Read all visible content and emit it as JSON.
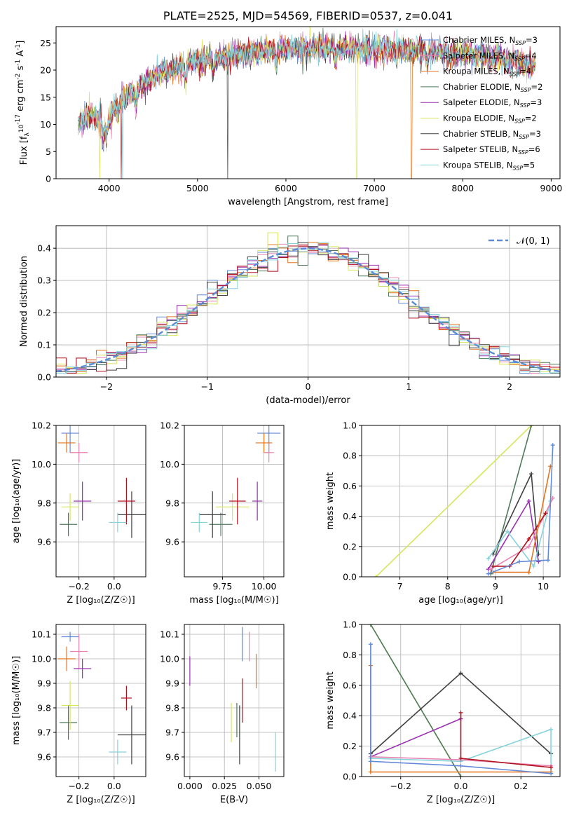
{
  "colors": [
    "#6389d9",
    "#e883b1",
    "#e4741d",
    "#4e7a5b",
    "#9931b0",
    "#d7e55c",
    "#404040",
    "#b2121e",
    "#87d4da"
  ],
  "chart_data": [
    {
      "id": "spectrum",
      "type": "line",
      "title": "PLATE=2525, MJD=54569, FIBERID=0537, z=0.041",
      "xlabel": "wavelength [Angstrom, rest frame]",
      "ylabel_parts": [
        "Flux [f",
        "λ",
        "10",
        "-17",
        " erg cm",
        "-2",
        " s",
        "-1",
        " A",
        "-1",
        "]"
      ],
      "xlim": [
        3400,
        9100
      ],
      "ylim": [
        0,
        28
      ],
      "xticks": [
        4000,
        5000,
        6000,
        7000,
        8000,
        9000
      ],
      "yticks": [
        0,
        5,
        10,
        15,
        20,
        25
      ],
      "x_range_data": [
        3650,
        8820
      ],
      "continuum": [
        [
          3650,
          10
        ],
        [
          3750,
          12
        ],
        [
          3850,
          11
        ],
        [
          4000,
          11
        ],
        [
          4100,
          14
        ],
        [
          4300,
          16.5
        ],
        [
          4600,
          19.5
        ],
        [
          5000,
          21.5
        ],
        [
          5500,
          23
        ],
        [
          6000,
          24
        ],
        [
          6500,
          24
        ],
        [
          7000,
          24
        ],
        [
          7500,
          23.5
        ],
        [
          8000,
          23
        ],
        [
          8500,
          22
        ],
        [
          8800,
          21
        ]
      ],
      "legend": [
        {
          "name_parts": [
            "Chabrier MILES, N",
            "SSP",
            "=3"
          ],
          "color": "#6389d9"
        },
        {
          "name_parts": [
            "Salpeter MILES, N",
            "SSP",
            "=4"
          ],
          "color": "#e883b1"
        },
        {
          "name_parts": [
            "Kroupa MILES, N",
            "SSP",
            "=4"
          ],
          "color": "#e4741d"
        },
        {
          "name_parts": [
            "Chabrier ELODIE, N",
            "SSP",
            "=2"
          ],
          "color": "#4e7a5b"
        },
        {
          "name_parts": [
            "Salpeter ELODIE, N",
            "SSP",
            "=3"
          ],
          "color": "#9931b0"
        },
        {
          "name_parts": [
            "Kroupa ELODIE, N",
            "SSP",
            "=2"
          ],
          "color": "#d7e55c"
        },
        {
          "name_parts": [
            "Chabrier STELIB, N",
            "SSP",
            "=3"
          ],
          "color": "#404040"
        },
        {
          "name_parts": [
            "Salpeter STELIB, N",
            "SSP",
            "=6"
          ],
          "color": "#b2121e"
        },
        {
          "name_parts": [
            "Kroupa STELIB, N",
            "SSP",
            "=5"
          ],
          "color": "#87d4da"
        }
      ]
    },
    {
      "id": "residuals",
      "type": "step",
      "xlabel": "(data-model)/error",
      "ylabel": "Normed distribution",
      "xlim": [
        -2.5,
        2.5
      ],
      "ylim": [
        0,
        0.47
      ],
      "xticks": [
        -2,
        -1,
        0,
        1,
        2
      ],
      "yticks": [
        0.0,
        0.1,
        0.2,
        0.3,
        0.4
      ],
      "legend_label": "𝒩(0, 1)",
      "legend_color": "#5b8ad6",
      "bin_width": 0.1
    },
    {
      "id": "age_vs_Z",
      "type": "errorbar",
      "xlabel": "Z [log₁₀(Z/Z☉)]",
      "ylabel": "age  [log₁₀(age/yr)]",
      "xlim": [
        -0.33,
        0.18
      ],
      "ylim": [
        9.42,
        10.2
      ],
      "xticks": [
        -0.2,
        0.0
      ],
      "yticks": [
        9.6,
        9.8,
        10.0,
        10.2
      ],
      "points": [
        {
          "x": -0.25,
          "xerr": 0.05,
          "y": 10.16,
          "yerr": 0.1,
          "color": "#6389d9"
        },
        {
          "x": -0.2,
          "xerr": 0.05,
          "y": 10.06,
          "yerr": 0.05,
          "color": "#e883b1"
        },
        {
          "x": -0.27,
          "xerr": 0.05,
          "y": 10.11,
          "yerr": 0.05,
          "color": "#e4741d"
        },
        {
          "x": -0.26,
          "xerr": 0.05,
          "y": 9.69,
          "yerr": 0.06,
          "color": "#4e7a5b"
        },
        {
          "x": -0.18,
          "xerr": 0.05,
          "y": 9.81,
          "yerr": 0.1,
          "color": "#9931b0"
        },
        {
          "x": -0.25,
          "xerr": 0.05,
          "y": 9.78,
          "yerr": 0.07,
          "color": "#d7e55c"
        },
        {
          "x": 0.1,
          "xerr": 0.08,
          "y": 9.74,
          "yerr": 0.12,
          "color": "#404040"
        },
        {
          "x": 0.07,
          "xerr": 0.05,
          "y": 9.81,
          "yerr": 0.12,
          "color": "#b2121e"
        },
        {
          "x": 0.02,
          "xerr": 0.05,
          "y": 9.7,
          "yerr": 0.05,
          "color": "#87d4da"
        }
      ]
    },
    {
      "id": "age_vs_mass",
      "type": "errorbar",
      "xlabel": "mass [log₁₀(M/M☉)]",
      "ylabel": "",
      "xlim": [
        9.52,
        10.12
      ],
      "ylim": [
        9.42,
        10.2
      ],
      "xticks": [
        9.75,
        10.0
      ],
      "yticks": [
        9.6,
        9.8,
        10.0,
        10.2
      ],
      "points": [
        {
          "x": 10.03,
          "xerr": 0.07,
          "y": 10.16,
          "yerr": 0.1,
          "color": "#6389d9"
        },
        {
          "x": 10.03,
          "xerr": 0.03,
          "y": 10.06,
          "yerr": 0.05,
          "color": "#e883b1"
        },
        {
          "x": 10.0,
          "xerr": 0.05,
          "y": 10.11,
          "yerr": 0.05,
          "color": "#e4741d"
        },
        {
          "x": 9.74,
          "xerr": 0.07,
          "y": 9.69,
          "yerr": 0.06,
          "color": "#4e7a5b"
        },
        {
          "x": 9.96,
          "xerr": 0.03,
          "y": 9.81,
          "yerr": 0.1,
          "color": "#9931b0"
        },
        {
          "x": 9.81,
          "xerr": 0.1,
          "y": 9.78,
          "yerr": 0.07,
          "color": "#d7e55c"
        },
        {
          "x": 9.69,
          "xerr": 0.08,
          "y": 9.74,
          "yerr": 0.12,
          "color": "#404040"
        },
        {
          "x": 9.84,
          "xerr": 0.05,
          "y": 9.81,
          "yerr": 0.12,
          "color": "#b2121e"
        },
        {
          "x": 9.61,
          "xerr": 0.05,
          "y": 9.7,
          "yerr": 0.05,
          "color": "#87d4da"
        }
      ]
    },
    {
      "id": "massweight_vs_age",
      "type": "line",
      "xlabel": "age  [log₁₀(age/yr)]",
      "ylabel": "mass weight",
      "xlim": [
        6.2,
        10.35
      ],
      "ylim": [
        0,
        1
      ],
      "xticks": [
        7,
        8,
        9,
        10
      ],
      "yticks": [
        0.0,
        0.2,
        0.4,
        0.6,
        0.8,
        1.0
      ],
      "series": [
        {
          "color": "#d7e55c",
          "points": [
            [
              6.5,
              0
            ],
            [
              9.75,
              1.0
            ]
          ]
        },
        {
          "color": "#4e7a5b",
          "points": [
            [
              8.9,
              0.02
            ],
            [
              9.75,
              1.0
            ]
          ]
        },
        {
          "color": "#404040",
          "points": [
            [
              8.95,
              0.15
            ],
            [
              9.75,
              0.68
            ],
            [
              9.9,
              0.15
            ]
          ]
        },
        {
          "color": "#9931b0",
          "points": [
            [
              8.85,
              0.05
            ],
            [
              9.7,
              0.5
            ],
            [
              9.9,
              0.1
            ]
          ]
        },
        {
          "color": "#87d4da",
          "points": [
            [
              8.85,
              0.12
            ],
            [
              9.25,
              0.3
            ],
            [
              9.8,
              0.07
            ],
            [
              10.15,
              0.5
            ]
          ]
        },
        {
          "color": "#e883b1",
          "points": [
            [
              8.9,
              0.05
            ],
            [
              9.7,
              0.2
            ],
            [
              10.2,
              0.52
            ]
          ]
        },
        {
          "color": "#b2121e",
          "points": [
            [
              8.95,
              0.07
            ],
            [
              9.3,
              0.07
            ],
            [
              9.7,
              0.25
            ],
            [
              10.05,
              0.42
            ]
          ]
        },
        {
          "color": "#e4741d",
          "points": [
            [
              8.95,
              0.03
            ],
            [
              9.7,
              0.03
            ],
            [
              10.15,
              0.73
            ]
          ]
        },
        {
          "color": "#6389d9",
          "points": [
            [
              8.85,
              0.02
            ],
            [
              9.5,
              0.1
            ],
            [
              10.1,
              0.11
            ],
            [
              10.2,
              0.87
            ]
          ]
        }
      ]
    },
    {
      "id": "mass_vs_Z",
      "type": "errorbar",
      "xlabel": "Z [log₁₀(Z/Z☉)]",
      "ylabel": "mass [log₁₀(M/M☉)]",
      "xlim": [
        -0.33,
        0.18
      ],
      "ylim": [
        9.52,
        10.14
      ],
      "xticks": [
        -0.2,
        0.0
      ],
      "yticks": [
        9.6,
        9.7,
        9.8,
        9.9,
        10.0,
        10.1
      ],
      "points": [
        {
          "x": -0.25,
          "xerr": 0.05,
          "y": 10.09,
          "yerr": 0.02,
          "color": "#6389d9"
        },
        {
          "x": -0.2,
          "xerr": 0.05,
          "y": 10.03,
          "yerr": 0.07,
          "color": "#e883b1"
        },
        {
          "x": -0.27,
          "xerr": 0.05,
          "y": 10.0,
          "yerr": 0.05,
          "color": "#e4741d"
        },
        {
          "x": -0.26,
          "xerr": 0.05,
          "y": 9.74,
          "yerr": 0.07,
          "color": "#4e7a5b"
        },
        {
          "x": -0.18,
          "xerr": 0.05,
          "y": 9.96,
          "yerr": 0.04,
          "color": "#9931b0"
        },
        {
          "x": -0.25,
          "xerr": 0.05,
          "y": 9.81,
          "yerr": 0.1,
          "color": "#d7e55c"
        },
        {
          "x": 0.1,
          "xerr": 0.08,
          "y": 9.69,
          "yerr": 0.12,
          "color": "#404040"
        },
        {
          "x": 0.07,
          "xerr": 0.03,
          "y": 9.84,
          "yerr": 0.05,
          "color": "#b2121e"
        },
        {
          "x": 0.02,
          "xerr": 0.05,
          "y": 9.62,
          "yerr": 0.05,
          "color": "#87d4da"
        }
      ]
    },
    {
      "id": "mass_vs_ebv",
      "type": "errorbar",
      "xlabel": "E(B-V)",
      "ylabel": "",
      "xlim": [
        -0.004,
        0.068
      ],
      "ylim": [
        9.52,
        10.14
      ],
      "xticks": [
        0.0,
        0.025,
        0.05
      ],
      "yticks": [
        9.6,
        9.7,
        9.8,
        9.9,
        10.0,
        10.1
      ],
      "points": [
        {
          "x": 0.0,
          "xerr": 0,
          "y": 9.95,
          "yerr": 0.06,
          "color": "#9931b0"
        },
        {
          "x": 0.038,
          "xerr": 0,
          "y": 10.06,
          "yerr": 0.07,
          "color": "#6389d9"
        },
        {
          "x": 0.043,
          "xerr": 0,
          "y": 10.05,
          "yerr": 0.06,
          "color": "#e883b1"
        },
        {
          "x": 0.048,
          "xerr": 0,
          "y": 9.95,
          "yerr": 0.07,
          "color": "#e4741d"
        },
        {
          "x": 0.03,
          "xerr": 0,
          "y": 9.74,
          "yerr": 0.08,
          "color": "#d7e55c"
        },
        {
          "x": 0.034,
          "xerr": 0,
          "y": 9.75,
          "yerr": 0.07,
          "color": "#4e7a5b"
        },
        {
          "x": 0.036,
          "xerr": 0,
          "y": 9.69,
          "yerr": 0.12,
          "color": "#404040"
        },
        {
          "x": 0.038,
          "xerr": 0,
          "y": 9.83,
          "yerr": 0.09,
          "color": "#b2121e"
        },
        {
          "x": 0.062,
          "xerr": 0,
          "y": 9.62,
          "yerr": 0.08,
          "color": "#87d4da"
        }
      ]
    },
    {
      "id": "massweight_vs_Z",
      "type": "line",
      "xlabel": "Z [log₁₀(Z/Z☉)]",
      "ylabel": "mass weight",
      "xlim": [
        -0.33,
        0.33
      ],
      "ylim": [
        0,
        1
      ],
      "xticks": [
        -0.2,
        0.0,
        0.2
      ],
      "yticks": [
        0.0,
        0.2,
        0.4,
        0.6,
        0.8,
        1.0
      ],
      "series": [
        {
          "color": "#d7e55c",
          "points": [
            [
              -0.3,
              1.0
            ],
            [
              0.0,
              0.0
            ]
          ]
        },
        {
          "color": "#4e7a5b",
          "points": [
            [
              -0.3,
              1.0
            ],
            [
              0.0,
              0.0
            ]
          ]
        },
        {
          "color": "#404040",
          "points": [
            [
              -0.3,
              0.15
            ],
            [
              0.0,
              0.68
            ],
            [
              0.3,
              0.15
            ]
          ]
        },
        {
          "color": "#9931b0",
          "points": [
            [
              -0.3,
              0.13
            ],
            [
              0.0,
              0.38
            ]
          ]
        },
        {
          "color": "#87d4da",
          "points": [
            [
              -0.3,
              0.12
            ],
            [
              0.0,
              0.1
            ],
            [
              0.3,
              0.31
            ],
            [
              0.3,
              0.02
            ]
          ]
        },
        {
          "color": "#e883b1",
          "points": [
            [
              -0.3,
              0.13
            ],
            [
              0.0,
              0.11
            ],
            [
              0.3,
              0.07
            ]
          ]
        },
        {
          "color": "#b2121e",
          "points": [
            [
              0.0,
              0.42
            ],
            [
              0.0,
              0.12
            ],
            [
              0.3,
              0.06
            ]
          ]
        },
        {
          "color": "#e4741d",
          "points": [
            [
              -0.3,
              0.73
            ],
            [
              -0.3,
              0.03
            ],
            [
              0.3,
              0.03
            ]
          ]
        },
        {
          "color": "#6389d9",
          "points": [
            [
              -0.3,
              0.87
            ],
            [
              -0.3,
              0.1
            ],
            [
              0.0,
              0.07
            ],
            [
              0.3,
              0.02
            ]
          ]
        }
      ]
    }
  ]
}
